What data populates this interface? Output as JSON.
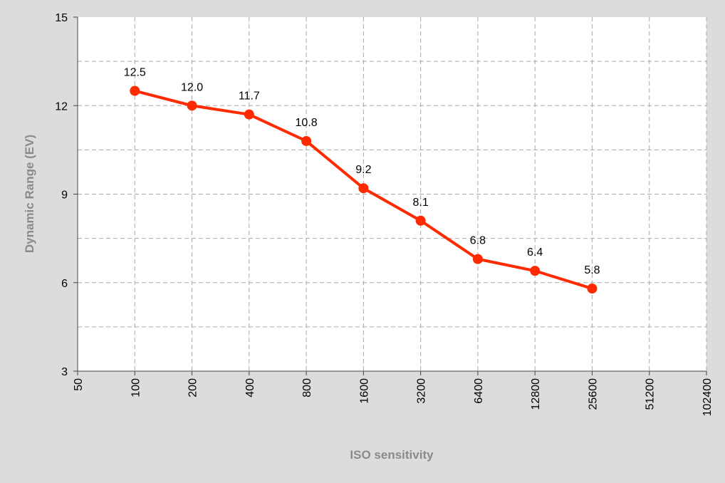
{
  "chart_data": {
    "type": "line",
    "title": "",
    "xlabel": "ISO sensitivity",
    "ylabel": "Dynamic Range (EV)",
    "x_categories": [
      "50",
      "100",
      "200",
      "400",
      "800",
      "1600",
      "3200",
      "6400",
      "12800",
      "25600",
      "51200",
      "102400"
    ],
    "y_ticks": [
      "15",
      "12",
      "9",
      "6",
      "3"
    ],
    "ylim": [
      3,
      15
    ],
    "y_major_step": 3,
    "y_minor_step": 1.5,
    "x_scale": "log2",
    "grid": true,
    "legend": "none",
    "series": [
      {
        "color": "#ff2a00",
        "x": [
          "100",
          "200",
          "400",
          "800",
          "1600",
          "3200",
          "6400",
          "12800",
          "25600"
        ],
        "values": [
          12.5,
          12.0,
          11.7,
          10.8,
          9.2,
          8.1,
          6.8,
          6.4,
          5.8
        ],
        "labels": [
          "12.5",
          "12.0",
          "11.7",
          "10.8",
          "9.2",
          "8.1",
          "6.8",
          "6.4",
          "5.8"
        ]
      }
    ]
  }
}
